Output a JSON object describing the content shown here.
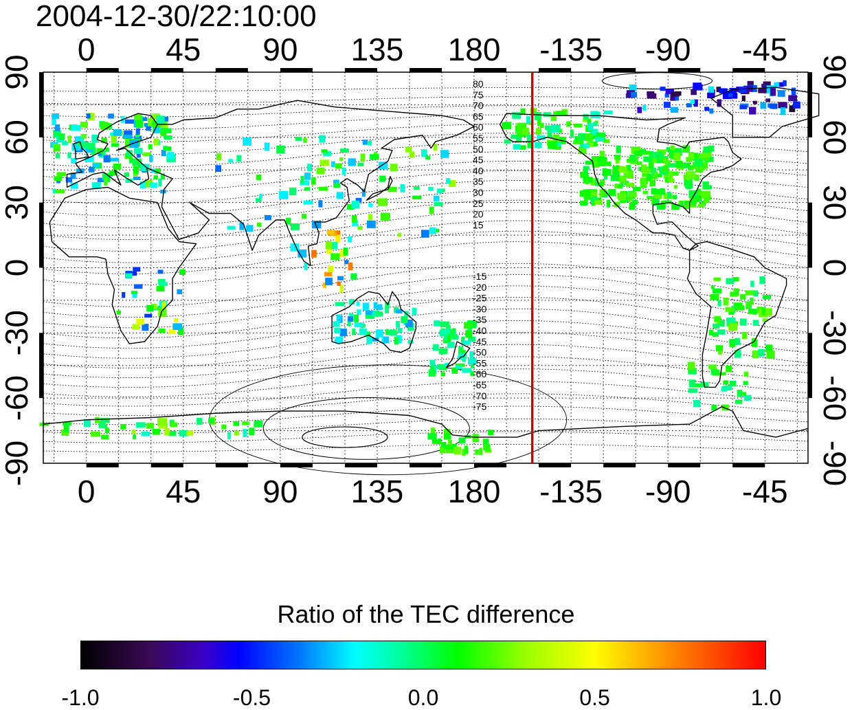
{
  "title": "2004-12-30/22:10:00",
  "map": {
    "lon_ticks": [
      "0",
      "45",
      "90",
      "135",
      "180",
      "-135",
      "-90",
      "-45"
    ],
    "lon_tick_values": [
      0,
      45,
      90,
      135,
      180,
      225,
      270,
      315
    ],
    "lat_ticks": [
      "90",
      "60",
      "30",
      "0",
      "-30",
      "-60",
      "-90"
    ],
    "lat_tick_values": [
      90,
      60,
      30,
      0,
      -30,
      -60,
      -90
    ],
    "lon_range_deg": [
      -20,
      335
    ],
    "lat_range_deg": [
      -90,
      90
    ],
    "terminator_lon_deg": 207,
    "terminator_color": "#cc0000",
    "contour_labels_north": [
      "80",
      "75",
      "70",
      "65",
      "60",
      "55",
      "50",
      "45",
      "40",
      "35",
      "30",
      "25",
      "20",
      "15"
    ],
    "contour_labels_south": [
      "-15",
      "-20",
      "-25",
      "-30",
      "-35",
      "-40",
      "-45",
      "-50",
      "-55",
      "-60",
      "-65",
      "-70",
      "-75"
    ]
  },
  "colorbar": {
    "title": "Ratio of the TEC difference",
    "min": -1.0,
    "max": 1.0,
    "tick_labels": [
      "-1.0",
      "-0.5",
      "0.0",
      "0.5",
      "1.0"
    ],
    "tick_values": [
      -1.0,
      -0.5,
      0.0,
      0.5,
      1.0
    ]
  }
}
